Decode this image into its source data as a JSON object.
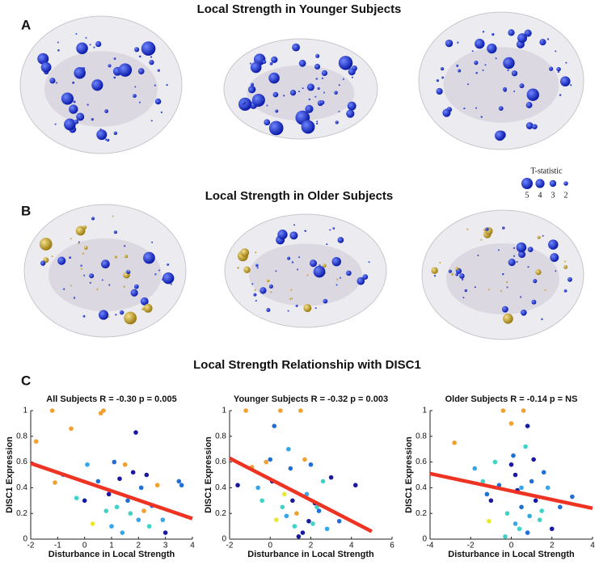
{
  "panels": [
    {
      "label": "A",
      "title": "Local Strength in Younger Subjects"
    },
    {
      "label": "B",
      "title": "Local Strength in Older Subjects"
    },
    {
      "label": "C",
      "title": "Local Strength Relationship with DISC1"
    }
  ],
  "brain_legend": {
    "title": "T-statistic",
    "sizes": [
      5,
      4,
      3,
      2
    ],
    "color": "#1a2fe0"
  },
  "chart_data": [
    {
      "type": "scatter",
      "title": "All Subjects R = -0.30 p = 0.005",
      "xlabel": "Disturbance in Local Strength",
      "ylabel": "DISC1 Expression",
      "xlim": [
        -2,
        4
      ],
      "xticks": [
        -2,
        -1,
        0,
        1,
        2,
        3,
        4
      ],
      "ylim": [
        0,
        1
      ],
      "yticks": [
        0,
        0.2,
        0.4,
        0.6,
        0.8,
        1
      ],
      "x": [
        -1.8,
        -1.2,
        -1.1,
        -0.8,
        -0.5,
        -0.3,
        0,
        0.1,
        0.3,
        0.5,
        0.6,
        0.7,
        0.8,
        0.9,
        1.0,
        1.1,
        1.2,
        1.3,
        1.4,
        1.5,
        1.6,
        1.7,
        1.8,
        1.9,
        2.0,
        2.1,
        2.2,
        2.3,
        2.4,
        2.5,
        2.7,
        2.9,
        3.0,
        3.5,
        3.6
      ],
      "y": [
        0.76,
        1.0,
        0.44,
        0.5,
        0.86,
        0.32,
        0.3,
        0.58,
        0.12,
        0.45,
        0.98,
        1.0,
        0.22,
        0.35,
        0.1,
        0.6,
        0.25,
        0.47,
        0.05,
        0.58,
        0.3,
        0.2,
        0.52,
        0.83,
        0.15,
        0.4,
        0.22,
        0.5,
        0.1,
        0.26,
        0.42,
        0.15,
        0.05,
        0.45,
        0.42
      ],
      "colors": [
        "#f0a030",
        "#f0a030",
        "#f0a030",
        "#35a6e8",
        "#f0a030",
        "#3ed3c8",
        "#1a1aa0",
        "#35a6e8",
        "#e8e830",
        "#1f6fd6",
        "#f0a030",
        "#f0a030",
        "#3ed3c8",
        "#1a1aa0",
        "#35a6e8",
        "#1f6fd6",
        "#3ed3c8",
        "#1a1aa0",
        "#35a6e8",
        "#f0a030",
        "#1f6fd6",
        "#3ed3c8",
        "#1a1aa0",
        "#1a1aa0",
        "#35a6e8",
        "#1f6fd6",
        "#f0a030",
        "#1a1aa0",
        "#3ed3c8",
        "#1f6fd6",
        "#f0a030",
        "#35a6e8",
        "#1a1aa0",
        "#1f6fd6",
        "#1f6fd6"
      ],
      "fit": {
        "x": [
          -2,
          4
        ],
        "y": [
          0.59,
          0.16
        ],
        "color": "#ee3322"
      }
    },
    {
      "type": "scatter",
      "title": "Younger Subjects R = -0.32 p = 0.003",
      "xlabel": "Disturbance in Local Strength",
      "ylabel": "DISC1 Expression",
      "xlim": [
        -2,
        6
      ],
      "xticks": [
        -2,
        0,
        2,
        4,
        6
      ],
      "ylim": [
        0,
        1
      ],
      "yticks": [
        0,
        0.2,
        0.4,
        0.6,
        0.8,
        1
      ],
      "x": [
        -1.6,
        -1.2,
        -0.9,
        -0.6,
        -0.4,
        -0.2,
        0,
        0.1,
        0.3,
        0.5,
        0.6,
        0.8,
        1.0,
        1.1,
        1.2,
        1.3,
        1.5,
        1.6,
        1.8,
        2.0,
        2.1,
        2.2,
        2.4,
        2.6,
        2.8,
        3.0,
        3.4,
        4.2,
        0.2,
        0.9,
        1.4,
        1.7,
        2.3,
        0.7,
        1.9
      ],
      "y": [
        0.42,
        1.0,
        0.56,
        0.4,
        0.3,
        0.6,
        0.62,
        0.45,
        0.15,
        1.0,
        0.25,
        0.18,
        0.55,
        0.3,
        0.1,
        0.2,
        1.0,
        0.05,
        0.35,
        0.58,
        0.12,
        0.28,
        0.22,
        0.45,
        0.08,
        0.48,
        0.14,
        0.42,
        0.88,
        0.7,
        0.02,
        0.62,
        0.25,
        0.35,
        0.14
      ],
      "colors": [
        "#1a1aa0",
        "#f0a030",
        "#f0a030",
        "#35a6e8",
        "#3ed3c8",
        "#f0a030",
        "#1f6fd6",
        "#1a1aa0",
        "#e8e830",
        "#f0a030",
        "#3ed3c8",
        "#35a6e8",
        "#1f6fd6",
        "#1a1aa0",
        "#3ed3c8",
        "#f0a030",
        "#f0a030",
        "#1a1aa0",
        "#35a6e8",
        "#1f6fd6",
        "#3ed3c8",
        "#1a1aa0",
        "#1f6fd6",
        "#3ed3c8",
        "#35a6e8",
        "#1a1aa0",
        "#1f6fd6",
        "#1a1aa0",
        "#1f6fd6",
        "#35a6e8",
        "#1a1aa0",
        "#f0a030",
        "#3ed3c8",
        "#e8e830",
        "#1a1aa0"
      ],
      "fit": {
        "x": [
          -2,
          5
        ],
        "y": [
          0.63,
          0.06
        ],
        "color": "#ee3322"
      }
    },
    {
      "type": "scatter",
      "title": "Older Subjects R = -0.14 p = NS",
      "xlabel": "Disturbance in Local Strength",
      "ylabel": "DISC1 Expression",
      "xlim": [
        -4,
        4
      ],
      "xticks": [
        -4,
        -2,
        0,
        2,
        4
      ],
      "ylim": [
        0,
        1
      ],
      "yticks": [
        0,
        0.2,
        0.4,
        0.6,
        0.8,
        1
      ],
      "x": [
        -2.8,
        -1.8,
        -1.4,
        -1.2,
        -1.0,
        -0.8,
        -0.6,
        -0.4,
        -0.2,
        0,
        0.1,
        0.2,
        0.3,
        0.4,
        0.5,
        0.6,
        0.7,
        0.8,
        0.9,
        1.0,
        1.2,
        1.4,
        1.6,
        1.8,
        2.0,
        2.4,
        3.0,
        -0.3,
        0.0,
        0.5,
        1.1,
        -1.1,
        0.8,
        1.5,
        0.2
      ],
      "y": [
        0.75,
        0.55,
        0.45,
        0.35,
        0.3,
        0.6,
        0.42,
        1.0,
        0.2,
        0.58,
        0.65,
        0.12,
        0.38,
        0.08,
        0.25,
        1.0,
        0.72,
        0.88,
        0.18,
        0.45,
        0.3,
        0.15,
        0.52,
        0.4,
        0.08,
        0.25,
        0.33,
        0.02,
        0.9,
        0.4,
        0.62,
        0.14,
        0.05,
        0.22,
        0.5
      ],
      "colors": [
        "#f0a030",
        "#35a6e8",
        "#3ed3c8",
        "#1f6fd6",
        "#1a1aa0",
        "#3ed3c8",
        "#1f6fd6",
        "#f0a030",
        "#3ed3c8",
        "#1a1aa0",
        "#1f6fd6",
        "#35a6e8",
        "#1a1aa0",
        "#3ed3c8",
        "#1f6fd6",
        "#f0a030",
        "#3ed3c8",
        "#1a1aa0",
        "#35a6e8",
        "#1f6fd6",
        "#1a1aa0",
        "#3ed3c8",
        "#1f6fd6",
        "#35a6e8",
        "#1a1aa0",
        "#1f6fd6",
        "#1f6fd6",
        "#3ed3c8",
        "#f0a030",
        "#35a6e8",
        "#1a1aa0",
        "#e8e830",
        "#1f6fd6",
        "#3ed3c8",
        "#1a1aa0"
      ],
      "fit": {
        "x": [
          -4,
          4
        ],
        "y": [
          0.51,
          0.24
        ],
        "color": "#ee3322"
      }
    }
  ]
}
